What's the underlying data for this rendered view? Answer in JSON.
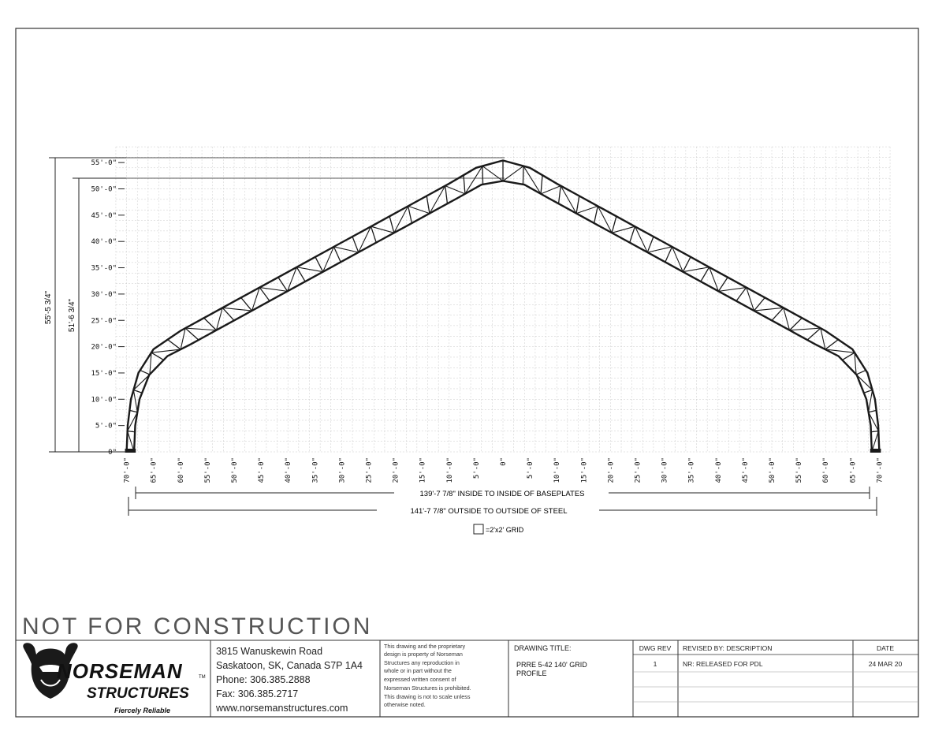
{
  "y_axis_labels": [
    "0\"",
    "5'-0\"",
    "10'-0\"",
    "15'-0\"",
    "20'-0\"",
    "25'-0\"",
    "30'-0\"",
    "35'-0\"",
    "40'-0\"",
    "45'-0\"",
    "50'-0\"",
    "55'-0\""
  ],
  "x_axis_labels": [
    "70'-0\"",
    "65'-0\"",
    "60'-0\"",
    "55'-0\"",
    "50'-0\"",
    "45'-0\"",
    "40'-0\"",
    "35'-0\"",
    "30'-0\"",
    "25'-0\"",
    "20'-0\"",
    "15'-0\"",
    "10'-0\"",
    "5'-0\"",
    "0\"",
    "5'-0\"",
    "10'-0\"",
    "15'-0\"",
    "20'-0\"",
    "25'-0\"",
    "30'-0\"",
    "35'-0\"",
    "40'-0\"",
    "45'-0\"",
    "50'-0\"",
    "55'-0\"",
    "60'-0\"",
    "65'-0\"",
    "70'-0\""
  ],
  "dimensions": {
    "overall_height": "55'-5 3/4\"",
    "inside_height": "51'-6 3/4\"",
    "inside_width": "139'-7 7/8\" INSIDE TO INSIDE OF BASEPLATES",
    "outside_width": "141'-7 7/8\" OUTSIDE TO OUTSIDE OF STEEL"
  },
  "grid_legend": "=2'x2' GRID",
  "watermark": "NOT FOR CONSTRUCTION",
  "title_block": {
    "logo_name": "NORSEMAN",
    "logo_tm": "TM",
    "logo_sub": "STRUCTURES",
    "logo_tagline": "Fiercely Reliable",
    "address_lines": [
      "3815 Wanuskewin Road",
      "Saskatoon, SK, Canada S7P 1A4",
      "Phone: 306.385.2888",
      "Fax: 306.385.2717",
      "www.norsemanstructures.com"
    ],
    "notice_lines": [
      "This drawing and the proprietary",
      "design is property of Norseman",
      "Structures any reproduction in",
      "whole or in part without the",
      "expressed written consent of",
      "Norseman Structures is prohibited.",
      "This drawing is not to scale unless",
      "otherwise noted."
    ],
    "drawing_title_label": "DRAWING TITLE:",
    "drawing_title_lines": [
      "PRRE 5-42 140' GRID",
      "PROFILE"
    ],
    "rev_header": "DWG REV",
    "desc_header": "REVISED BY: DESCRIPTION",
    "date_header": "DATE",
    "rev_value": "1",
    "desc_value": "NR: RELEASED FOR PDL",
    "date_value": "24 MAR 20"
  },
  "colors": {
    "line": "#1a1a1a",
    "grid": "#c8c8c8"
  }
}
